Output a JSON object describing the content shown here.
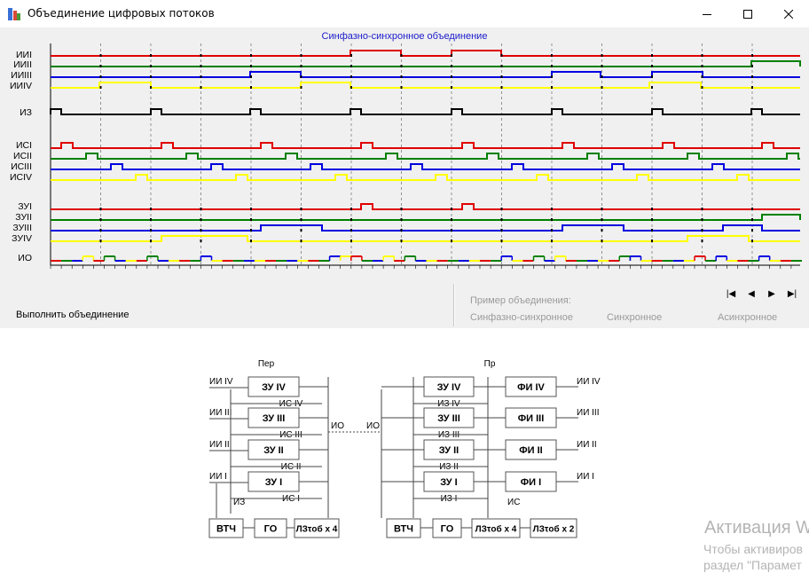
{
  "window": {
    "title": "Объединение цифровых потоков",
    "minimize_icon": "minimize-icon",
    "maximize_icon": "maximize-icon",
    "close_icon": "close-icon"
  },
  "timing": {
    "title": "Синфазно-синхронное объединение",
    "channels": [
      {
        "label": "ИИI",
        "color": "#e00000"
      },
      {
        "label": "ИИII",
        "color": "#008000"
      },
      {
        "label": "ИИIII",
        "color": "#0000e0"
      },
      {
        "label": "ИИIV",
        "color": "#ffff00"
      },
      {
        "label": "ИЗ",
        "color": "#000000"
      },
      {
        "label": "ИСI",
        "color": "#e00000"
      },
      {
        "label": "ИСII",
        "color": "#008000"
      },
      {
        "label": "ИСIII",
        "color": "#0000e0"
      },
      {
        "label": "ИСIV",
        "color": "#ffff00"
      },
      {
        "label": "ЗУI",
        "color": "#e00000"
      },
      {
        "label": "ЗУII",
        "color": "#008000"
      },
      {
        "label": "ЗУIII",
        "color": "#0000e0"
      },
      {
        "label": "ЗУIV",
        "color": "#ffff00"
      },
      {
        "label": "ИО",
        "color": "#000000"
      }
    ]
  },
  "controls": {
    "execute_label": "Выполнить объединение",
    "example_label": "Пример объединения:",
    "modes": [
      "Синфазно-синхронное",
      "Синхронное",
      "Асинхронное"
    ],
    "nav": {
      "first": "|◀",
      "prev": "◀",
      "next": "▶",
      "last": "▶|"
    }
  },
  "diagram": {
    "tx_title": "Пер",
    "rx_title": "Пр",
    "tx_inputs": [
      "ИИ IV",
      "ИИ III",
      "ИИ II",
      "ИИ I"
    ],
    "tx_memory": [
      "ЗУ IV",
      "ЗУ III",
      "ЗУ II",
      "ЗУ I"
    ],
    "tx_sync": [
      "ИС IV",
      "ИС III",
      "ИС II",
      "ИС I"
    ],
    "tx_iz": "ИЗ",
    "tx_io": "ИО",
    "tx_bottom": [
      "ВТЧ",
      "ГО",
      "ЛЗτоб x 4"
    ],
    "rx_io": "ИО",
    "rx_memory": [
      "ЗУ IV",
      "ЗУ III",
      "ЗУ II",
      "ЗУ I"
    ],
    "rx_iz": [
      "ИЗ IV",
      "ИЗ III",
      "ИЗ II",
      "ИЗ I"
    ],
    "rx_fi": [
      "ФИ IV",
      "ФИ III",
      "ФИ II",
      "ФИ I"
    ],
    "rx_outputs": [
      "ИИ IV",
      "ИИ III",
      "ИИ II",
      "ИИ I"
    ],
    "rx_is": "ИС",
    "rx_bottom": [
      "ВТЧ",
      "ГО",
      "ЛЗτоб x 4",
      "ЛЗτоб x 2"
    ]
  },
  "watermark": {
    "title": "Активация W",
    "line1": "Чтобы активиров",
    "line2": "раздел \"Парамет"
  }
}
